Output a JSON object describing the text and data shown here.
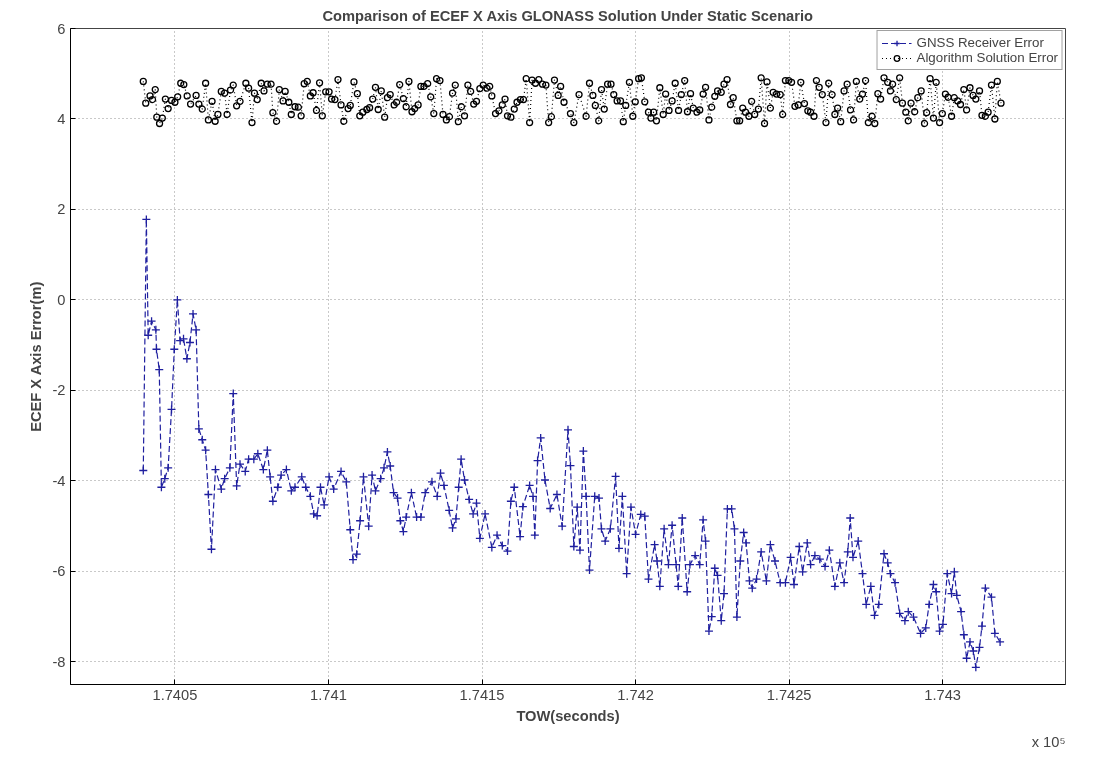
{
  "chart_data": {
    "type": "line",
    "title": "Comparison of ECEF X Axis GLONASS Solution Under Static Scenario",
    "xlabel": "TOW(seconds)",
    "ylabel": "ECEF X Axis Error(m)",
    "annotations": [
      "x 10⁵"
    ],
    "xlim": [
      1.74016,
      1.7434
    ],
    "xticks": [
      1.7405,
      1.741,
      1.7415,
      1.742,
      1.7425,
      1.743
    ],
    "ylim": [
      -8.5,
      6
    ],
    "yticks": [
      -8,
      -6,
      -4,
      -2,
      0,
      2,
      4,
      6
    ],
    "grid": true,
    "legend": "top right",
    "series": [
      {
        "name": "GNSS Receiver Error",
        "color": "#1f1f9f",
        "marker": "cross",
        "line_style": "dashed",
        "x": [
          1.740397,
          1.740407,
          1.740413,
          1.740424,
          1.740438,
          1.74044,
          1.740449,
          1.740456,
          1.740467,
          1.740478,
          1.740489,
          1.740498,
          1.740508,
          1.740517,
          1.740528,
          1.740539,
          1.740549,
          1.740559,
          1.740569,
          1.740578,
          1.740589,
          1.7406,
          1.740609,
          1.740619,
          1.740632,
          1.740651,
          1.740662,
          1.740679,
          1.74069,
          1.740701,
          1.740712,
          1.740729,
          1.74074,
          1.740757,
          1.74077,
          1.740788,
          1.740801,
          1.74081,
          1.740819,
          1.740835,
          1.740846,
          1.740863,
          1.740879,
          1.740891,
          1.740913,
          1.740926,
          1.740941,
          1.740952,
          1.740963,
          1.740974,
          1.740986,
          1.741002,
          1.741017,
          1.741041,
          1.741058,
          1.741071,
          1.74108,
          1.741092,
          1.741103,
          1.741114,
          1.741131,
          1.741142,
          1.741153,
          1.74117,
          1.741181,
          1.741192,
          1.741201,
          1.741212,
          1.741225,
          1.741234,
          1.741244,
          1.741253,
          1.74127,
          1.741287,
          1.741301,
          1.741315,
          1.741337,
          1.741354,
          1.741365,
          1.741376,
          1.741393,
          1.741404,
          1.741415,
          1.741424,
          1.741432,
          1.741443,
          1.741458,
          1.741471,
          1.741482,
          1.741493,
          1.74151,
          1.741532,
          1.741549,
          1.741566,
          1.741583,
          1.741594,
          1.741605,
          1.741624,
          1.741633,
          1.741655,
          1.741666,
          1.741672,
          1.741681,
          1.741691,
          1.741705,
          1.741722,
          1.741744,
          1.741761,
          1.74178,
          1.741788,
          1.741799,
          1.74181,
          1.741819,
          1.74183,
          1.741839,
          1.74185,
          1.741867,
          1.741881,
          1.741889,
          1.741901,
          1.741918,
          1.741935,
          1.741946,
          1.741957,
          1.741971,
          1.741985,
          1.742,
          1.742017,
          1.74203,
          1.742042,
          1.742062,
          1.74207,
          1.742079,
          1.742093,
          1.742107,
          1.742119,
          1.742132,
          1.742139,
          1.742152,
          1.742168,
          1.742177,
          1.742194,
          1.742209,
          1.74222,
          1.742228,
          1.742239,
          1.742248,
          1.742258,
          1.742267,
          1.742279,
          1.742288,
          1.742299,
          1.742313,
          1.742322,
          1.74233,
          1.742341,
          1.742352,
          1.74236,
          1.742371,
          1.74238,
          1.742394,
          1.742409,
          1.742426,
          1.742439,
          1.742454,
          1.742471,
          1.742488,
          1.742505,
          1.742516,
          1.742533,
          1.742544,
          1.742559,
          1.74257,
          1.742584,
          1.7426,
          1.742617,
          1.742631,
          1.742649,
          1.742665,
          1.742679,
          1.742691,
          1.742699,
          1.742708,
          1.742725,
          1.742739,
          1.742751,
          1.742766,
          1.742778,
          1.742792,
          1.742809,
          1.742821,
          1.74283,
          1.742845,
          1.74286,
          1.742877,
          1.742888,
          1.742905,
          1.742928,
          1.742945,
          1.742956,
          1.74297,
          1.742979,
          1.74299,
          1.743001,
          1.743015,
          1.743029,
          1.743038,
          1.743046,
          1.74306,
          1.743069,
          1.743078,
          1.743089,
          1.7431,
          1.743108,
          1.74312,
          1.743128,
          1.743139,
          1.743159,
          1.74317,
          1.743187
        ],
        "values": [
          -3.77,
          1.78,
          -0.78,
          -0.47,
          -0.66,
          -1.09,
          -1.54,
          -4.14,
          -3.95,
          -3.71,
          -2.42,
          -1.09,
          0.0,
          -0.9,
          -0.86,
          -1.3,
          -0.94,
          -0.31,
          -0.66,
          -2.85,
          -3.09,
          -3.32,
          -4.3,
          -5.51,
          -3.75,
          -4.18,
          -3.95,
          -3.71,
          -2.07,
          -4.11,
          -3.63,
          -3.79,
          -3.52,
          -3.52,
          -3.4,
          -3.75,
          -3.32,
          -3.91,
          -4.45,
          -4.14,
          -3.87,
          -3.75,
          -4.22,
          -4.14,
          -3.91,
          -4.14,
          -4.34,
          -4.73,
          -4.77,
          -4.14,
          -4.53,
          -3.91,
          -4.18,
          -3.79,
          -4.02,
          -5.08,
          -5.74,
          -5.62,
          -4.88,
          -3.91,
          -5.0,
          -3.87,
          -4.22,
          -3.95,
          -3.71,
          -3.36,
          -3.67,
          -4.26,
          -4.38,
          -4.88,
          -5.12,
          -4.8,
          -4.26,
          -4.8,
          -4.8,
          -4.26,
          -4.02,
          -4.34,
          -3.83,
          -4.1,
          -4.65,
          -5.04,
          -4.84,
          -4.14,
          -3.52,
          -3.98,
          -4.41,
          -4.73,
          -4.49,
          -5.27,
          -4.73,
          -5.47,
          -5.2,
          -5.43,
          -5.55,
          -4.45,
          -4.14,
          -5.23,
          -4.57,
          -4.1,
          -4.34,
          -5.2,
          -3.55,
          -3.05,
          -3.98,
          -4.61,
          -4.3,
          -5.0,
          -2.87,
          -3.66,
          -5.45,
          -4.58,
          -5.53,
          -3.34,
          -4.34,
          -5.97,
          -4.34,
          -4.38,
          -5.06,
          -5.33,
          -5.06,
          -3.9,
          -5.49,
          -4.34,
          -6.05,
          -4.58,
          -5.18,
          -4.74,
          -4.78,
          -6.17,
          -5.41,
          -5.77,
          -6.33,
          -5.06,
          -5.85,
          -4.98,
          -5.85,
          -6.33,
          -4.82,
          -6.45,
          -5.85,
          -5.65,
          -5.85,
          -4.86,
          -5.33,
          -7.32,
          -7.0,
          -5.93,
          -6.09,
          -7.09,
          -6.49,
          -4.62,
          -4.62,
          -5.06,
          -7.01,
          -5.77,
          -5.14,
          -5.37,
          -6.21,
          -6.37,
          -6.17,
          -5.57,
          -6.21,
          -5.41,
          -5.77,
          -6.25,
          -6.25,
          -5.69,
          -6.29,
          -5.45,
          -6.01,
          -5.37,
          -5.85,
          -5.65,
          -5.73,
          -5.89,
          -5.53,
          -6.33,
          -5.81,
          -6.25,
          -5.57,
          -4.82,
          -5.69,
          -5.33,
          -6.05,
          -6.73,
          -6.33,
          -6.97,
          -6.73,
          -5.61,
          -5.81,
          -6.05,
          -6.25,
          -6.93,
          -7.09,
          -6.89,
          -7.01,
          -7.37,
          -7.25,
          -6.73,
          -6.29,
          -6.45,
          -7.32,
          -7.17,
          -6.05,
          -6.49,
          -6.01,
          -6.53,
          -6.89,
          -7.4,
          -7.92,
          -7.56,
          -7.76,
          -8.12,
          -7.68,
          -7.21,
          -6.37,
          -6.57,
          -7.37,
          -7.56
        ]
      },
      {
        "name": "Algorithm Solution Error",
        "color": "#000000",
        "marker": "circle",
        "line_style": "dotted",
        "x": [
          1.740397,
          1.740405,
          1.740419,
          1.740427,
          1.740436,
          1.740441,
          1.74045,
          1.740459,
          1.740469,
          1.740478,
          1.740489,
          1.7405,
          1.740509,
          1.740519,
          1.740529,
          1.74054,
          1.740551,
          1.740569,
          1.740578,
          1.740589,
          1.7406,
          1.740609,
          1.740621,
          1.740631,
          1.74064,
          1.740651,
          1.740662,
          1.74067,
          1.740681,
          1.74069,
          1.740701,
          1.740712,
          1.740731,
          1.74074,
          1.740751,
          1.740759,
          1.740768,
          1.740781,
          1.74079,
          1.740801,
          1.740813,
          1.740819,
          1.740831,
          1.74084,
          1.740852,
          1.740859,
          1.740871,
          1.740879,
          1.740891,
          1.740902,
          1.740911,
          1.740921,
          1.740931,
          1.740941,
          1.74095,
          1.740961,
          1.740971,
          1.74098,
          1.740991,
          1.741002,
          1.74101,
          1.741021,
          1.741031,
          1.741041,
          1.74105,
          1.741064,
          1.741071,
          1.741083,
          1.741094,
          1.741102,
          1.741112,
          1.741125,
          1.741134,
          1.741144,
          1.741153,
          1.741162,
          1.741172,
          1.741183,
          1.741192,
          1.741201,
          1.741214,
          1.741222,
          1.741232,
          1.741244,
          1.741253,
          1.741262,
          1.741272,
          1.741281,
          1.741292,
          1.741301,
          1.741311,
          1.741323,
          1.741333,
          1.741343,
          1.741352,
          1.741363,
          1.741373,
          1.741384,
          1.741394,
          1.741404,
          1.741413,
          1.741423,
          1.741433,
          1.741443,
          1.741454,
          1.741463,
          1.741473,
          1.741482,
          1.741493,
          1.741504,
          1.741516,
          1.741525,
          1.741532,
          1.741544,
          1.741555,
          1.741566,
          1.741575,
          1.741583,
          1.741594,
          1.741605,
          1.741614,
          1.741625,
          1.741635,
          1.741644,
          1.741655,
          1.741663,
          1.741674,
          1.741685,
          1.741697,
          1.741708,
          1.741717,
          1.741726,
          1.741736,
          1.741748,
          1.741756,
          1.741767,
          1.741788,
          1.741799,
          1.741816,
          1.741839,
          1.74185,
          1.741861,
          1.741869,
          1.74188,
          1.741889,
          1.741898,
          1.741909,
          1.74192,
          1.741929,
          1.74194,
          1.741951,
          1.74196,
          1.741968,
          1.74198,
          1.741991,
          1.741999,
          1.74201,
          1.742019,
          1.74203,
          1.742042,
          1.74205,
          1.742059,
          1.742068,
          1.742079,
          1.74209,
          1.742098,
          1.742109,
          1.742119,
          1.742129,
          1.74214,
          1.742149,
          1.74216,
          1.742169,
          1.742179,
          1.742188,
          1.7422,
          1.742209,
          1.74222,
          1.742228,
          1.742239,
          1.742248,
          1.742258,
          1.742267,
          1.742279,
          1.742288,
          1.742298,
          1.742309,
          1.742318,
          1.74233,
          1.742339,
          1.742349,
          1.742358,
          1.742369,
          1.742378,
          1.742388,
          1.7424,
          1.742409,
          1.74242,
          1.742428,
          1.742439,
          1.742448,
          1.742459,
          1.742471,
          1.742479,
          1.742488,
          1.742499,
          1.742508,
          1.742519,
          1.74253,
          1.742538,
          1.74255,
          1.742561,
          1.74257,
          1.742581,
          1.742589,
          1.742598,
          1.742608,
          1.74262,
          1.742629,
          1.74264,
          1.742649,
          1.742658,
          1.742668,
          1.742679,
          1.742689,
          1.7427,
          1.74271,
          1.742719,
          1.74273,
          1.742739,
          1.742749,
          1.742758,
          1.74277,
          1.742779,
          1.742789,
          1.742798,
          1.742809,
          1.742821,
          1.74283,
          1.742837,
          1.742849,
          1.74286,
          1.742869,
          1.74288,
          1.742888,
          1.742897,
          1.742909,
          1.742919,
          1.74293,
          1.742941,
          1.742948,
          1.742959,
          1.74297,
          1.742979,
          1.74299,
          1.742999,
          1.743009,
          1.743018,
          1.743029,
          1.743038,
          1.743049,
          1.743058,
          1.743069,
          1.743078,
          1.743089,
          1.743099,
          1.743108,
          1.74312,
          1.743128,
          1.743139,
          1.743148,
          1.743159,
          1.74317,
          1.743178,
          1.74319
        ],
        "values": [
          4.83,
          4.35,
          4.51,
          4.43,
          4.65,
          4.04,
          3.9,
          4.02,
          4.44,
          4.23,
          4.41,
          4.37,
          4.49,
          4.79,
          4.76,
          4.51,
          4.33,
          4.52,
          4.33,
          4.22,
          4.79,
          3.98,
          4.39,
          3.95,
          4.1,
          4.61,
          4.57,
          4.1,
          4.64,
          4.75,
          4.29,
          4.39,
          4.79,
          4.68,
          3.92,
          4.57,
          4.43,
          4.79,
          4.62,
          4.77,
          4.77,
          4.14,
          3.95,
          4.65,
          4.4,
          4.61,
          4.37,
          4.1,
          4.27,
          4.26,
          4.07,
          4.78,
          4.83,
          4.51,
          4.58,
          4.19,
          4.8,
          4.07,
          4.6,
          4.6,
          4.44,
          4.43,
          4.87,
          4.31,
          3.95,
          4.23,
          4.3,
          4.82,
          4.56,
          4.07,
          4.15,
          4.21,
          4.25,
          4.44,
          4.7,
          4.21,
          4.62,
          4.04,
          4.47,
          4.54,
          4.31,
          4.37,
          4.76,
          4.45,
          4.27,
          4.83,
          4.16,
          4.23,
          4.31,
          4.72,
          4.72,
          4.78,
          4.49,
          4.12,
          4.89,
          4.85,
          4.1,
          3.98,
          4.05,
          4.57,
          4.75,
          3.94,
          4.27,
          4.07,
          4.75,
          4.61,
          4.33,
          4.39,
          4.67,
          4.75,
          4.68,
          4.72,
          4.51,
          4.12,
          4.18,
          4.31,
          4.44,
          4.07,
          4.04,
          4.22,
          4.37,
          4.43,
          4.43,
          4.89,
          3.92,
          4.86,
          4.79,
          4.87,
          4.77,
          4.75,
          3.92,
          4.05,
          4.86,
          4.52,
          4.72,
          4.37,
          4.12,
          3.92,
          4.54,
          4.06,
          4.79,
          4.52,
          4.3,
          3.96,
          4.65,
          4.22,
          4.77,
          4.77,
          4.54,
          4.4,
          4.4,
          3.94,
          4.3,
          4.81,
          4.06,
          4.38,
          4.89,
          4.91,
          4.38,
          4.15,
          4.02,
          4.15,
          3.96,
          4.69,
          4.1,
          4.55,
          4.19,
          4.4,
          4.79,
          4.19,
          4.54,
          4.85,
          4.16,
          4.56,
          4.24,
          4.15,
          4.2,
          4.55,
          4.7,
          3.98,
          4.26,
          4.5,
          4.62,
          4.59,
          4.77,
          4.87,
          4.32,
          4.47,
          3.96,
          3.96,
          4.24,
          4.15,
          4.06,
          4.39,
          4.1,
          4.22,
          4.91,
          3.9,
          4.82,
          4.24,
          4.59,
          4.55,
          4.54,
          4.1,
          4.85,
          4.85,
          4.81,
          4.28,
          4.31,
          4.81,
          4.34,
          4.18,
          4.15,
          4.06,
          4.85,
          4.7,
          4.54,
          3.92,
          4.79,
          4.54,
          4.1,
          4.24,
          3.94,
          4.62,
          4.77,
          4.2,
          3.98,
          4.83,
          4.44,
          4.55,
          4.85,
          3.92,
          4.06,
          3.9,
          4.56,
          4.44,
          4.91,
          4.81,
          4.62,
          4.77,
          4.43,
          4.91,
          4.35,
          4.15,
          3.96,
          4.35,
          4.16,
          4.47,
          4.62,
          3.9,
          4.14,
          4.89,
          4.02,
          4.81,
          3.92,
          4.12,
          4.55,
          4.48,
          4.06,
          4.47,
          4.4,
          4.32,
          4.65,
          4.2,
          4.69,
          4.52,
          4.44,
          4.62,
          4.08,
          4.06,
          4.15,
          4.75,
          4.0,
          4.83,
          4.35
        ]
      }
    ]
  }
}
